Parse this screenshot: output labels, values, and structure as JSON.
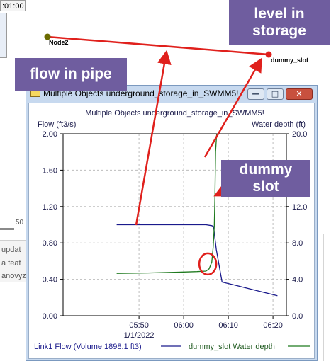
{
  "background": {
    "clock_text": ":01:00",
    "fragment_number": "50",
    "fragments": [
      "updat",
      "a feat",
      "anovyz"
    ]
  },
  "callouts": {
    "level_in_storage": "level in storage",
    "flow_in_pipe": "flow in pipe",
    "dummy_slot": "dummy slot"
  },
  "map": {
    "node2_label": "Node2",
    "dummy_slot_label": "dummy_slot",
    "node2_color": "#6b6b00",
    "dummy_slot_color": "#e0201c"
  },
  "window": {
    "title": "Multiple Objects underground_storage_in_SWMM5!",
    "minimize_glyph": "—",
    "maximize_glyph": "□",
    "close_glyph": "✕"
  },
  "chart_data": {
    "type": "line",
    "title": "Multiple Objects underground_storage_in_SWMM5!",
    "ylabel_left": "Flow (ft3/s)",
    "ylabel_right": "Water depth (ft)",
    "ylim_left": [
      0,
      2.0
    ],
    "ylim_right": [
      0,
      20.0
    ],
    "yticks_left": [
      "0.00",
      "0.40",
      "0.80",
      "1.20",
      "1.60",
      "2.00"
    ],
    "yticks_right": [
      "0.0",
      "4.0",
      "8.0",
      "12.0",
      "16.0",
      "20.0"
    ],
    "xticks": [
      "05:50",
      "06:00",
      "06:10",
      "06:20"
    ],
    "xdate_label": "1/1/2022",
    "grid": true,
    "legend_position": "bottom",
    "series": [
      {
        "name": "Link1 Flow (Volume 1898.1 ft3)",
        "axis": "left",
        "color": "#1a1a8c",
        "x": [
          -15,
          5.0,
          6.3,
          6.7,
          7.3,
          8.6,
          12.0,
          16.0,
          21.0
        ],
        "y": [
          1.0,
          1.0,
          0.99,
          0.98,
          0.73,
          0.37,
          0.33,
          0.28,
          0.22
        ]
      },
      {
        "name": "dummy_slot Water depth",
        "axis": "right",
        "color": "#1f7a1f",
        "x": [
          -15,
          -8,
          0,
          3.0,
          5.0,
          5.7,
          6.3,
          6.6,
          6.85,
          7.0,
          7.15,
          7.4
        ],
        "y": [
          4.65,
          4.7,
          4.8,
          4.85,
          4.9,
          5.15,
          5.9,
          7.5,
          9.8,
          13.0,
          18.0,
          20.0
        ]
      }
    ],
    "annotations": [
      {
        "type": "circle",
        "x": 5.4,
        "y_left": 0.53,
        "color": "#e0201c"
      }
    ]
  }
}
